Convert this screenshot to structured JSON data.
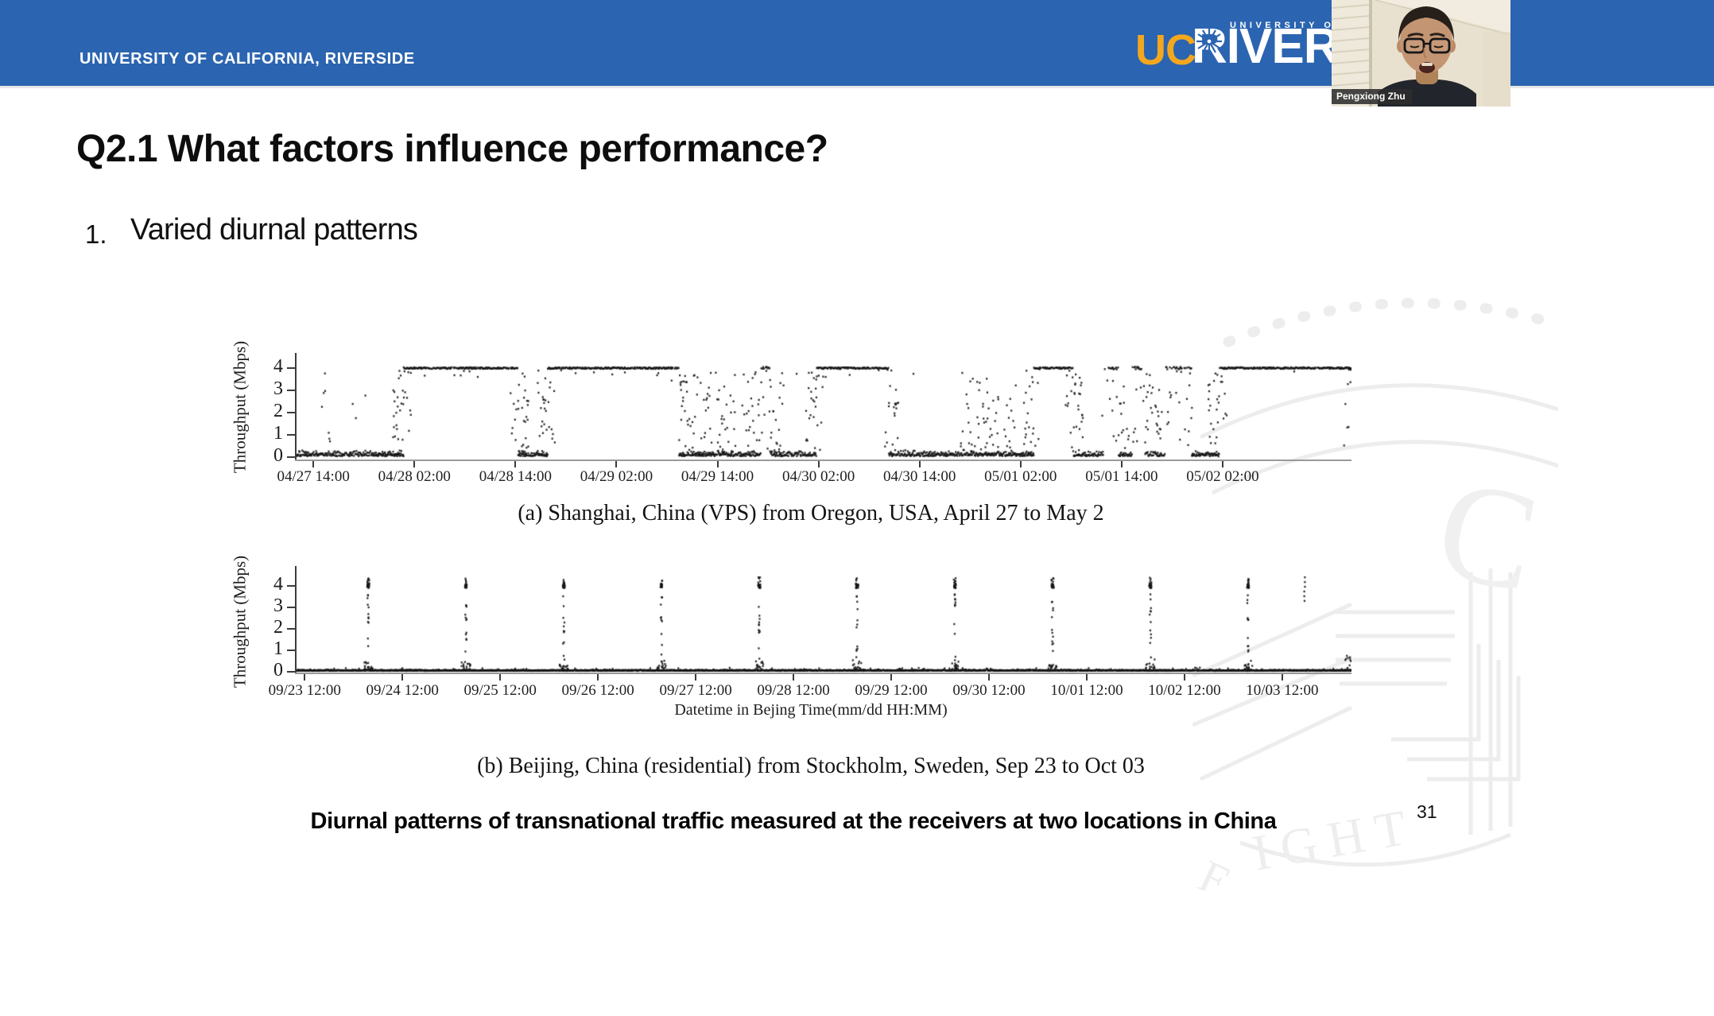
{
  "header": {
    "wordmark": "UNIVERSITY OF CALIFORNIA, RIVERSIDE",
    "logo_uc": "UC",
    "logo_riverside": "RIVERSIDE",
    "logo_top": "UNIVERSITY OF",
    "colors": {
      "bar_blue": "#2b64b0",
      "gold": "#f2a71f"
    }
  },
  "webcam": {
    "name": "Pengxiong Zhu"
  },
  "slide": {
    "title": "Q2.1 What factors influence performance?",
    "list_number": "1.",
    "list_item": "Varied diurnal patterns",
    "bottom_caption": "Diurnal patterns of transnational traffic measured at the receivers at two locations in China",
    "page_number": "31"
  },
  "watermark": {
    "letter_c": "C",
    "letters_ight": "IGHT",
    "letter_e": "E"
  },
  "chart_data": [
    {
      "type": "scatter",
      "title": "(a) Shanghai, China (VPS) from Oregon, USA, April 27 to May 2",
      "ylabel": "Throughput (Mbps)",
      "xlabel": "",
      "ylim": [
        0,
        4.6
      ],
      "yticks": [
        4,
        3,
        2,
        1,
        0
      ],
      "x_hours_range": [
        0,
        125.3
      ],
      "xtick_hours": [
        2,
        14,
        26,
        38,
        50,
        62,
        74,
        86,
        98,
        110
      ],
      "xtick_labels": [
        "04/27 14:00",
        "04/28 02:00",
        "04/28 14:00",
        "04/29 02:00",
        "04/29 14:00",
        "04/30 02:00",
        "04/30 14:00",
        "05/01 02:00",
        "05/01 14:00",
        "05/02 02:00"
      ],
      "pattern": {
        "description": "Low noisy throughput (0-1 Mbps) during Beijing daytime with vertical burst columns; saturates as a flat dense line at 4 Mbps overnight",
        "saturated_hours": [
          [
            12.7,
            26.3
          ],
          [
            29.8,
            45.4
          ],
          [
            61.8,
            70.3
          ],
          [
            87.6,
            92.2
          ],
          [
            109.6,
            125.3
          ]
        ],
        "patchy_hours": [
          [
            55.2,
            56.2
          ],
          [
            95.8,
            97.6
          ],
          [
            99.3,
            100.8
          ],
          [
            103.2,
            106.3
          ]
        ],
        "burst_hours": [
          [
            3.5,
            0.5
          ],
          [
            48,
            1.3
          ],
          [
            51,
            1.2
          ],
          [
            54,
            1.0
          ],
          [
            57,
            1.0
          ],
          [
            80,
            1.2
          ],
          [
            82.5,
            1.0
          ],
          [
            84.8,
            0.8
          ],
          [
            98,
            1.0
          ],
          [
            101.8,
            1.0
          ],
          [
            105,
            1.0
          ]
        ],
        "baseline_mbps": 0.3,
        "max_mbps": 4
      },
      "seed": 7
    },
    {
      "type": "scatter",
      "title": "(b) Beijing, China (residential) from Stockholm, Sweden, Sep 23 to Oct 03",
      "ylabel": "Throughput (Mbps)",
      "xlabel": "Datetime in Bejing Time(mm/dd HH:MM)",
      "ylim": [
        0,
        4.9
      ],
      "yticks": [
        4,
        3,
        2,
        1,
        0
      ],
      "x_hours_range": [
        -2,
        257
      ],
      "xtick_hours": [
        0,
        24,
        48,
        72,
        96,
        120,
        144,
        168,
        192,
        216,
        240
      ],
      "xtick_labels": [
        "09/23 12:00",
        "09/24 12:00",
        "09/25 12:00",
        "09/26 12:00",
        "09/27 12:00",
        "09/28 12:00",
        "09/29 12:00",
        "09/30 12:00",
        "10/01 12:00",
        "10/02 12:00",
        "10/03 12:00"
      ],
      "pattern": {
        "description": "Flat baseline near 0.1 Mbps with one sharp daily spike clustering at 4 Mbps",
        "spike_hours": [
          15.6,
          39.6,
          63.6,
          87.6,
          111.6,
          135.6,
          159.6,
          183.6,
          207.6,
          231.6
        ],
        "sparse_column_hour": 245.5,
        "edge_rise_hour": 257,
        "baseline_mbps": 0.1,
        "max_mbps": 4
      },
      "seed": 13
    }
  ]
}
